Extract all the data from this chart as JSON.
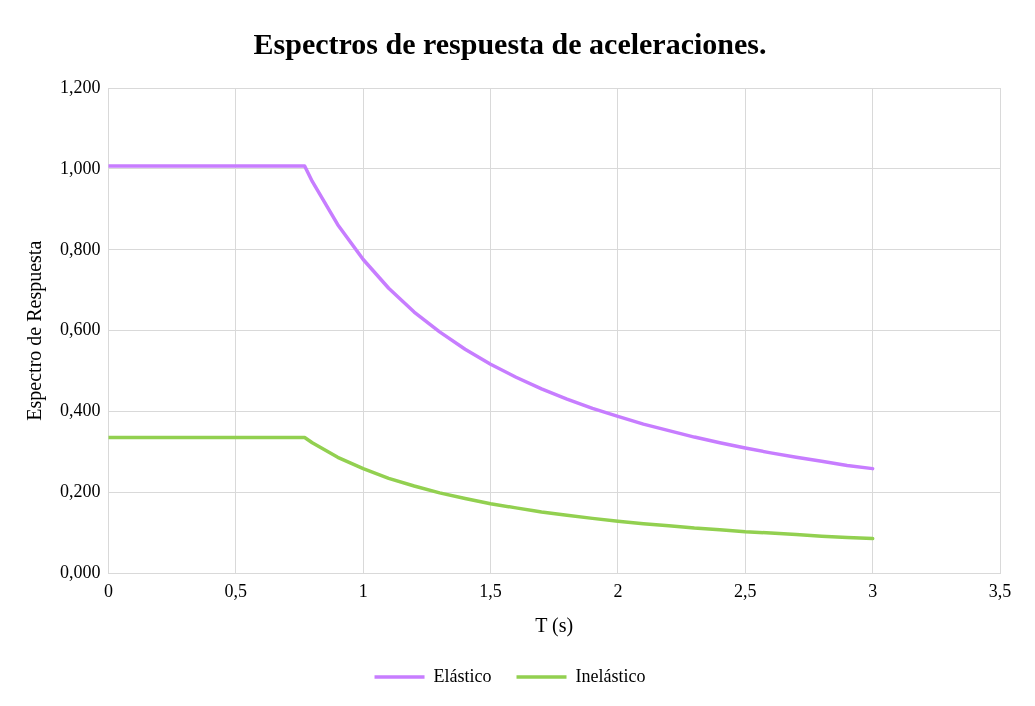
{
  "chart_data": {
    "type": "line",
    "title": "Espectros de respuesta de aceleraciones.",
    "xlabel": "T (s)",
    "ylabel": "Espectro de Respuesta",
    "xlim": [
      0,
      3.5
    ],
    "xticks": [
      0,
      {
        "value": 0.5,
        "label": "0,5"
      },
      1,
      {
        "value": 1.5,
        "label": "1,5"
      },
      2,
      {
        "value": 2.5,
        "label": "2,5"
      },
      3,
      {
        "value": 3.5,
        "label": "3,5"
      }
    ],
    "ylim": [
      0,
      1.2
    ],
    "yticks": [
      {
        "value": 0,
        "label": "0,000"
      },
      {
        "value": 0.2,
        "label": "0,200"
      },
      {
        "value": 0.4,
        "label": "0,400"
      },
      {
        "value": 0.6,
        "label": "0,600"
      },
      {
        "value": 0.8,
        "label": "0,800"
      },
      {
        "value": 1,
        "label": "1,000"
      },
      {
        "value": 1.2,
        "label": "1,200"
      }
    ],
    "x": [
      0,
      0.77,
      0.8,
      0.9,
      1.0,
      1.1,
      1.2,
      1.3,
      1.4,
      1.5,
      1.6,
      1.7,
      1.8,
      1.9,
      2.0,
      2.1,
      2.2,
      2.3,
      2.4,
      2.5,
      2.6,
      2.7,
      2.8,
      2.9,
      3.0
    ],
    "series": [
      {
        "name": "Elástico",
        "color": "#c77dff",
        "values": [
          1.007,
          1.007,
          0.969,
          0.862,
          0.776,
          0.705,
          0.646,
          0.597,
          0.554,
          0.517,
          0.485,
          0.456,
          0.431,
          0.408,
          0.388,
          0.369,
          0.353,
          0.337,
          0.323,
          0.31,
          0.298,
          0.287,
          0.277,
          0.267,
          0.259
        ]
      },
      {
        "name": "Inelástico",
        "color": "#92d050",
        "values": [
          0.336,
          0.336,
          0.323,
          0.287,
          0.259,
          0.235,
          0.216,
          0.199,
          0.185,
          0.172,
          0.162,
          0.152,
          0.144,
          0.136,
          0.129,
          0.123,
          0.118,
          0.112,
          0.108,
          0.103,
          0.1,
          0.096,
          0.092,
          0.089,
          0.086
        ]
      }
    ],
    "grid": true,
    "legend": "bottom",
    "marker": "none",
    "line_style": "solid"
  }
}
